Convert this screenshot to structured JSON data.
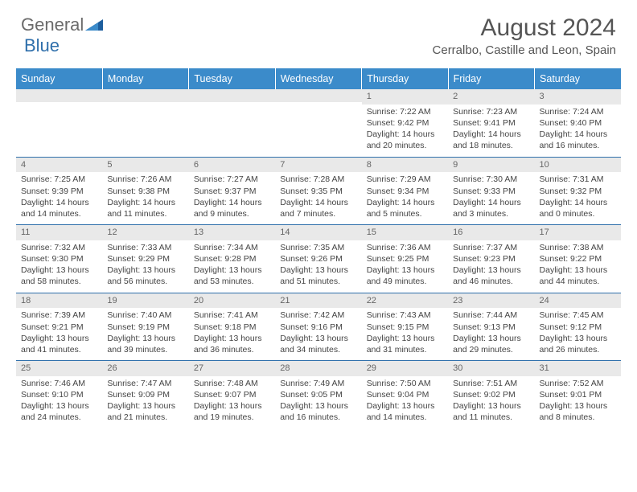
{
  "logo": {
    "word1": "General",
    "word2": "Blue"
  },
  "title": "August 2024",
  "location": "Cerralbo, Castille and Leon, Spain",
  "colors": {
    "header_bg": "#3b8bca",
    "header_text": "#ffffff",
    "daynum_bg": "#e9e9e9",
    "row_border": "#2f6fab",
    "text": "#444444",
    "logo_gray": "#6b6b6b",
    "logo_blue": "#2f6fab"
  },
  "weekdays": [
    "Sunday",
    "Monday",
    "Tuesday",
    "Wednesday",
    "Thursday",
    "Friday",
    "Saturday"
  ],
  "weeks": [
    [
      {
        "n": "",
        "sr": "",
        "ss": "",
        "dl": ""
      },
      {
        "n": "",
        "sr": "",
        "ss": "",
        "dl": ""
      },
      {
        "n": "",
        "sr": "",
        "ss": "",
        "dl": ""
      },
      {
        "n": "",
        "sr": "",
        "ss": "",
        "dl": ""
      },
      {
        "n": "1",
        "sr": "Sunrise: 7:22 AM",
        "ss": "Sunset: 9:42 PM",
        "dl": "Daylight: 14 hours and 20 minutes."
      },
      {
        "n": "2",
        "sr": "Sunrise: 7:23 AM",
        "ss": "Sunset: 9:41 PM",
        "dl": "Daylight: 14 hours and 18 minutes."
      },
      {
        "n": "3",
        "sr": "Sunrise: 7:24 AM",
        "ss": "Sunset: 9:40 PM",
        "dl": "Daylight: 14 hours and 16 minutes."
      }
    ],
    [
      {
        "n": "4",
        "sr": "Sunrise: 7:25 AM",
        "ss": "Sunset: 9:39 PM",
        "dl": "Daylight: 14 hours and 14 minutes."
      },
      {
        "n": "5",
        "sr": "Sunrise: 7:26 AM",
        "ss": "Sunset: 9:38 PM",
        "dl": "Daylight: 14 hours and 11 minutes."
      },
      {
        "n": "6",
        "sr": "Sunrise: 7:27 AM",
        "ss": "Sunset: 9:37 PM",
        "dl": "Daylight: 14 hours and 9 minutes."
      },
      {
        "n": "7",
        "sr": "Sunrise: 7:28 AM",
        "ss": "Sunset: 9:35 PM",
        "dl": "Daylight: 14 hours and 7 minutes."
      },
      {
        "n": "8",
        "sr": "Sunrise: 7:29 AM",
        "ss": "Sunset: 9:34 PM",
        "dl": "Daylight: 14 hours and 5 minutes."
      },
      {
        "n": "9",
        "sr": "Sunrise: 7:30 AM",
        "ss": "Sunset: 9:33 PM",
        "dl": "Daylight: 14 hours and 3 minutes."
      },
      {
        "n": "10",
        "sr": "Sunrise: 7:31 AM",
        "ss": "Sunset: 9:32 PM",
        "dl": "Daylight: 14 hours and 0 minutes."
      }
    ],
    [
      {
        "n": "11",
        "sr": "Sunrise: 7:32 AM",
        "ss": "Sunset: 9:30 PM",
        "dl": "Daylight: 13 hours and 58 minutes."
      },
      {
        "n": "12",
        "sr": "Sunrise: 7:33 AM",
        "ss": "Sunset: 9:29 PM",
        "dl": "Daylight: 13 hours and 56 minutes."
      },
      {
        "n": "13",
        "sr": "Sunrise: 7:34 AM",
        "ss": "Sunset: 9:28 PM",
        "dl": "Daylight: 13 hours and 53 minutes."
      },
      {
        "n": "14",
        "sr": "Sunrise: 7:35 AM",
        "ss": "Sunset: 9:26 PM",
        "dl": "Daylight: 13 hours and 51 minutes."
      },
      {
        "n": "15",
        "sr": "Sunrise: 7:36 AM",
        "ss": "Sunset: 9:25 PM",
        "dl": "Daylight: 13 hours and 49 minutes."
      },
      {
        "n": "16",
        "sr": "Sunrise: 7:37 AM",
        "ss": "Sunset: 9:23 PM",
        "dl": "Daylight: 13 hours and 46 minutes."
      },
      {
        "n": "17",
        "sr": "Sunrise: 7:38 AM",
        "ss": "Sunset: 9:22 PM",
        "dl": "Daylight: 13 hours and 44 minutes."
      }
    ],
    [
      {
        "n": "18",
        "sr": "Sunrise: 7:39 AM",
        "ss": "Sunset: 9:21 PM",
        "dl": "Daylight: 13 hours and 41 minutes."
      },
      {
        "n": "19",
        "sr": "Sunrise: 7:40 AM",
        "ss": "Sunset: 9:19 PM",
        "dl": "Daylight: 13 hours and 39 minutes."
      },
      {
        "n": "20",
        "sr": "Sunrise: 7:41 AM",
        "ss": "Sunset: 9:18 PM",
        "dl": "Daylight: 13 hours and 36 minutes."
      },
      {
        "n": "21",
        "sr": "Sunrise: 7:42 AM",
        "ss": "Sunset: 9:16 PM",
        "dl": "Daylight: 13 hours and 34 minutes."
      },
      {
        "n": "22",
        "sr": "Sunrise: 7:43 AM",
        "ss": "Sunset: 9:15 PM",
        "dl": "Daylight: 13 hours and 31 minutes."
      },
      {
        "n": "23",
        "sr": "Sunrise: 7:44 AM",
        "ss": "Sunset: 9:13 PM",
        "dl": "Daylight: 13 hours and 29 minutes."
      },
      {
        "n": "24",
        "sr": "Sunrise: 7:45 AM",
        "ss": "Sunset: 9:12 PM",
        "dl": "Daylight: 13 hours and 26 minutes."
      }
    ],
    [
      {
        "n": "25",
        "sr": "Sunrise: 7:46 AM",
        "ss": "Sunset: 9:10 PM",
        "dl": "Daylight: 13 hours and 24 minutes."
      },
      {
        "n": "26",
        "sr": "Sunrise: 7:47 AM",
        "ss": "Sunset: 9:09 PM",
        "dl": "Daylight: 13 hours and 21 minutes."
      },
      {
        "n": "27",
        "sr": "Sunrise: 7:48 AM",
        "ss": "Sunset: 9:07 PM",
        "dl": "Daylight: 13 hours and 19 minutes."
      },
      {
        "n": "28",
        "sr": "Sunrise: 7:49 AM",
        "ss": "Sunset: 9:05 PM",
        "dl": "Daylight: 13 hours and 16 minutes."
      },
      {
        "n": "29",
        "sr": "Sunrise: 7:50 AM",
        "ss": "Sunset: 9:04 PM",
        "dl": "Daylight: 13 hours and 14 minutes."
      },
      {
        "n": "30",
        "sr": "Sunrise: 7:51 AM",
        "ss": "Sunset: 9:02 PM",
        "dl": "Daylight: 13 hours and 11 minutes."
      },
      {
        "n": "31",
        "sr": "Sunrise: 7:52 AM",
        "ss": "Sunset: 9:01 PM",
        "dl": "Daylight: 13 hours and 8 minutes."
      }
    ]
  ]
}
